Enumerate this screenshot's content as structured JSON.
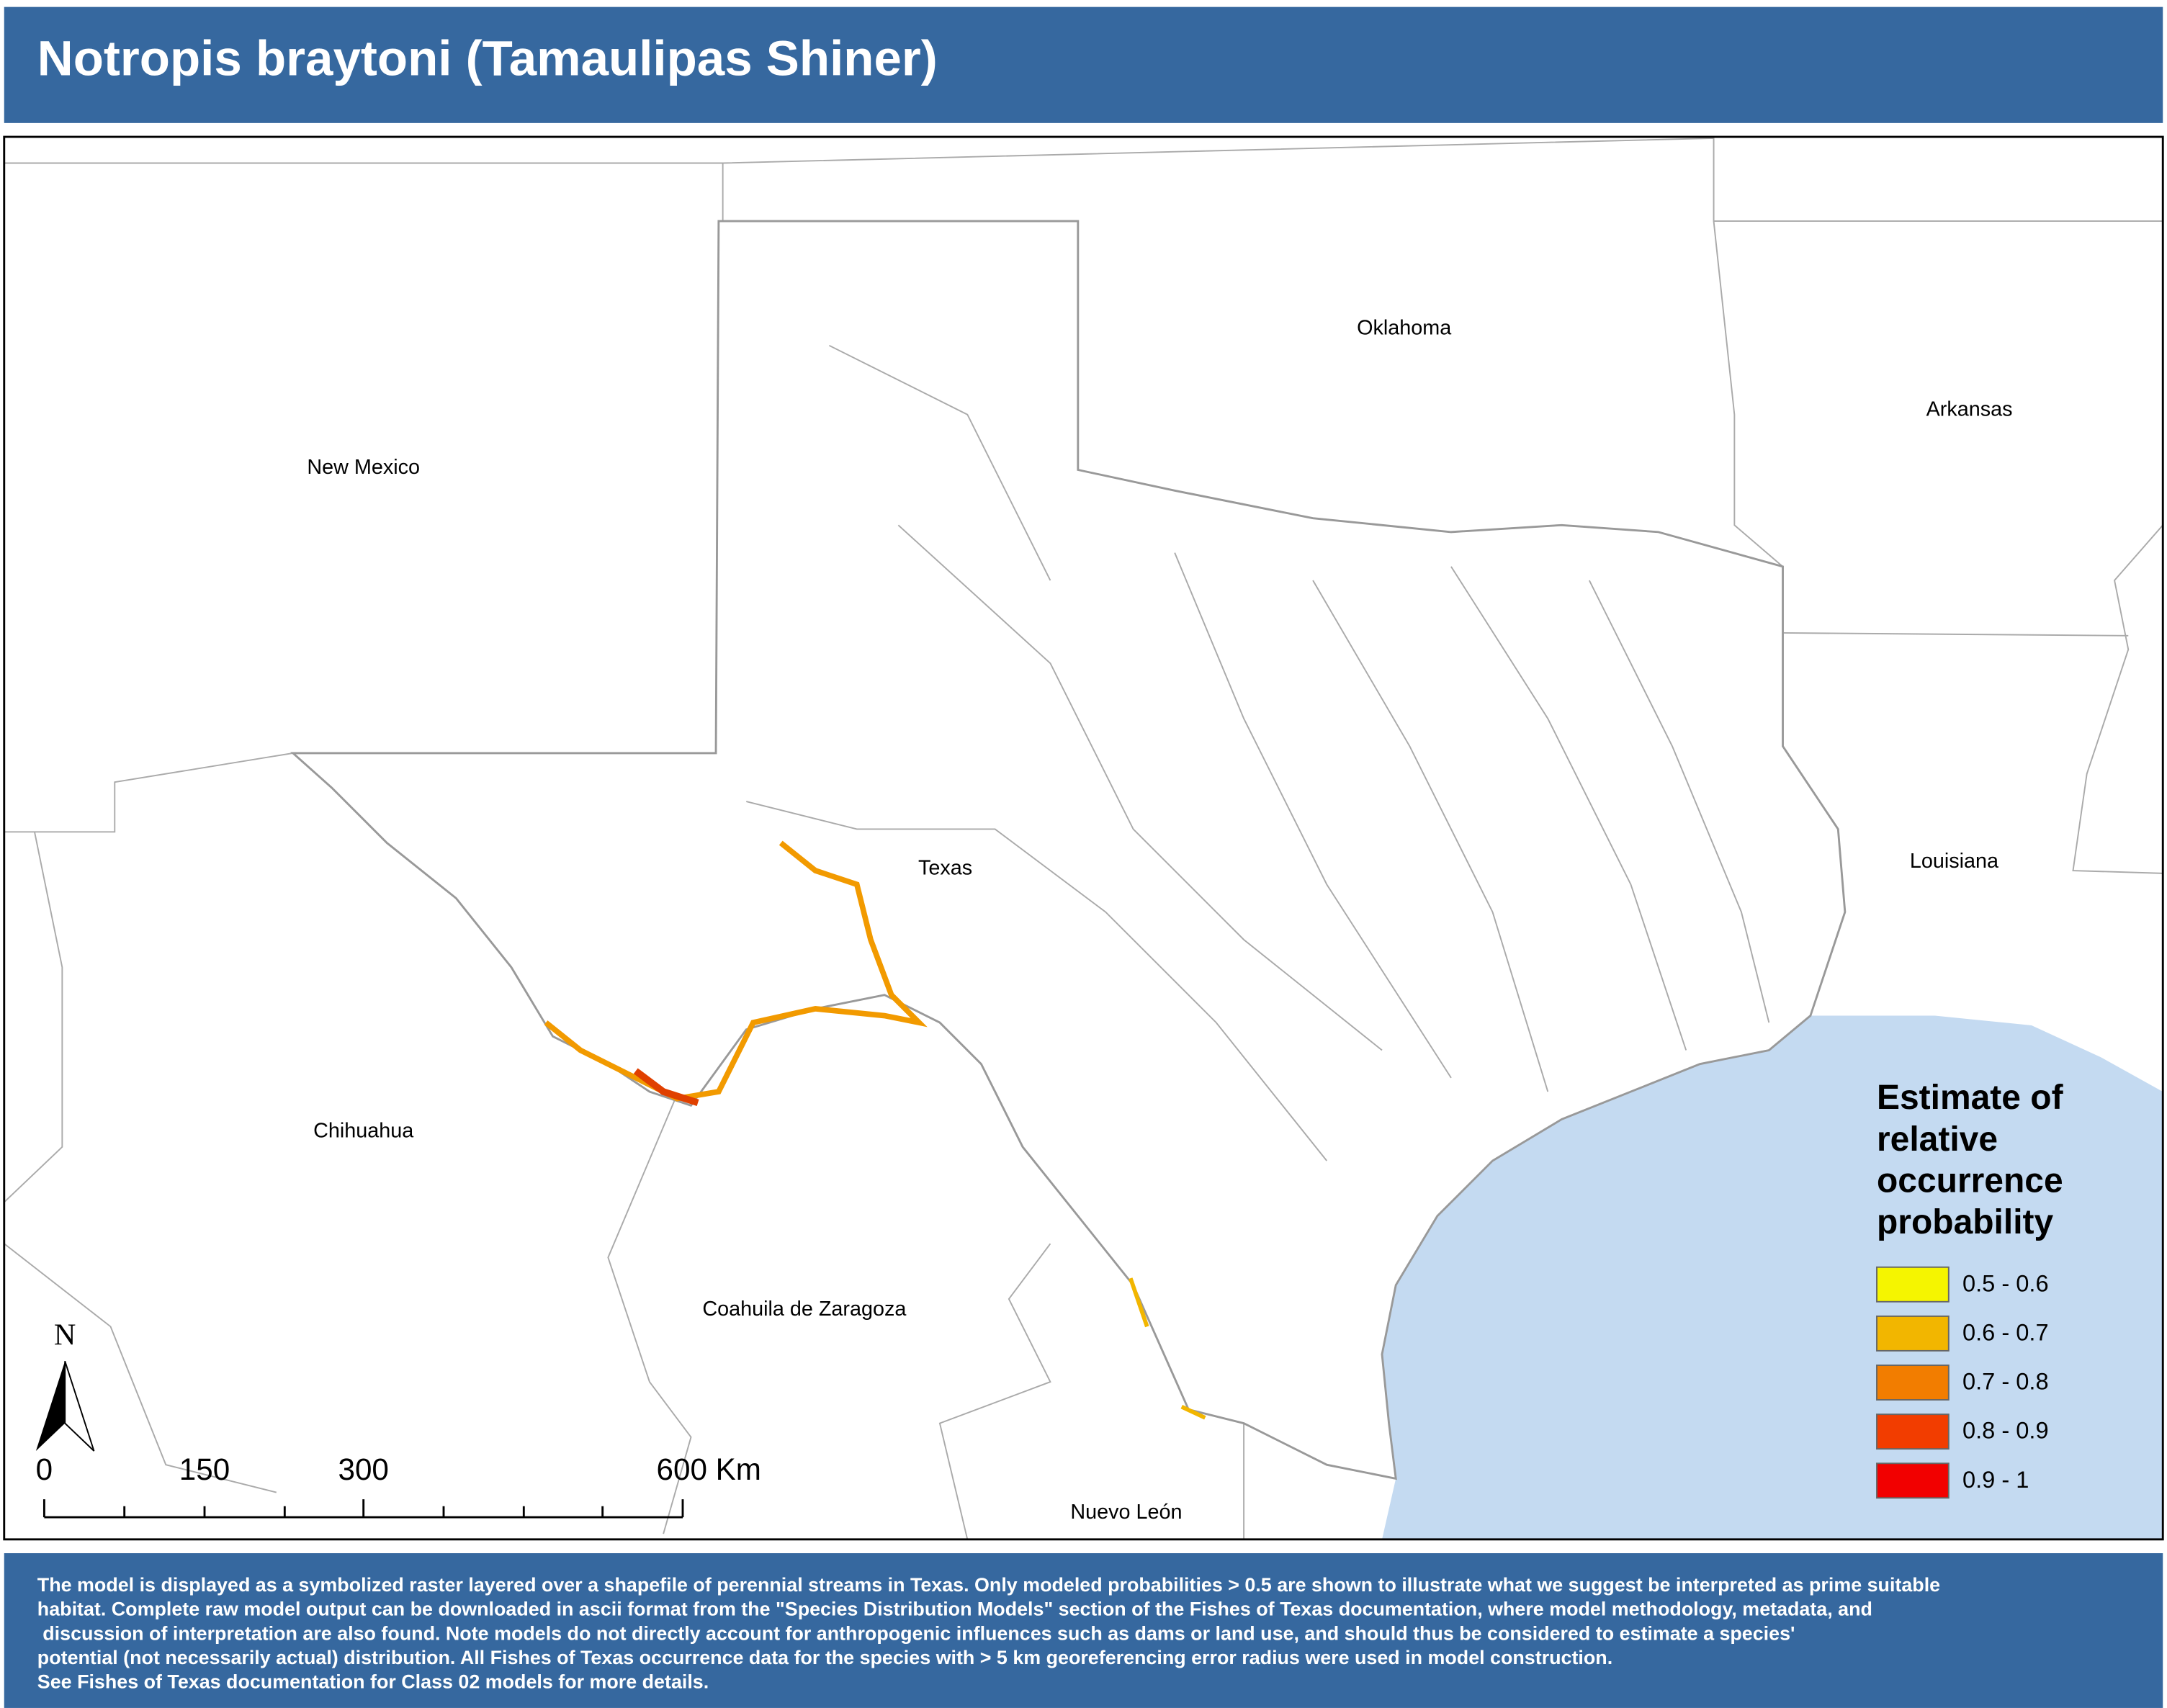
{
  "header": {
    "title": "Notropis braytoni (Tamaulipas Shiner)"
  },
  "map": {
    "labels": [
      "Oklahoma",
      "Arkansas",
      "New Mexico",
      "Texas",
      "Louisiana",
      "Chihuahua",
      "Coahuila de Zaragoza",
      "Nuevo León"
    ],
    "north": "N",
    "scale_bar": [
      "0",
      "150",
      "300",
      "600 Km"
    ]
  },
  "legend": {
    "title": [
      "Estimate of",
      "relative",
      "occurrence",
      "probability"
    ],
    "items": [
      {
        "label": "0.5 - 0.6",
        "color": "#f5f500"
      },
      {
        "label": "0.6 - 0.7",
        "color": "#f2b600"
      },
      {
        "label": "0.7 - 0.8",
        "color": "#f27d00"
      },
      {
        "label": "0.8 - 0.9",
        "color": "#f23d00"
      },
      {
        "label": "0.9 - 1",
        "color": "#f20000"
      }
    ]
  },
  "footer": {
    "lines": [
      "The model is displayed as a symbolized raster layered over a shapefile of perennial streams in Texas. Only modeled probabilities > 0.5 are shown to illustrate what we suggest be interpreted as prime suitable",
      "habitat. Complete raw model output can be downloaded in ascii format from the \"Species Distribution Models\" section of the Fishes of Texas documentation, where model methodology, metadata, and",
      " discussion of interpretation are also found. Note models do not directly account for anthropogenic influences such as dams or land use, and should thus be considered to estimate a species'",
      "potential (not necessarily actual) distribution. All Fishes of Texas occurrence data for the species with > 5 km georeferencing error radius were used in model construction.",
      "See Fishes of Texas documentation for Class 02 models for more details."
    ]
  }
}
